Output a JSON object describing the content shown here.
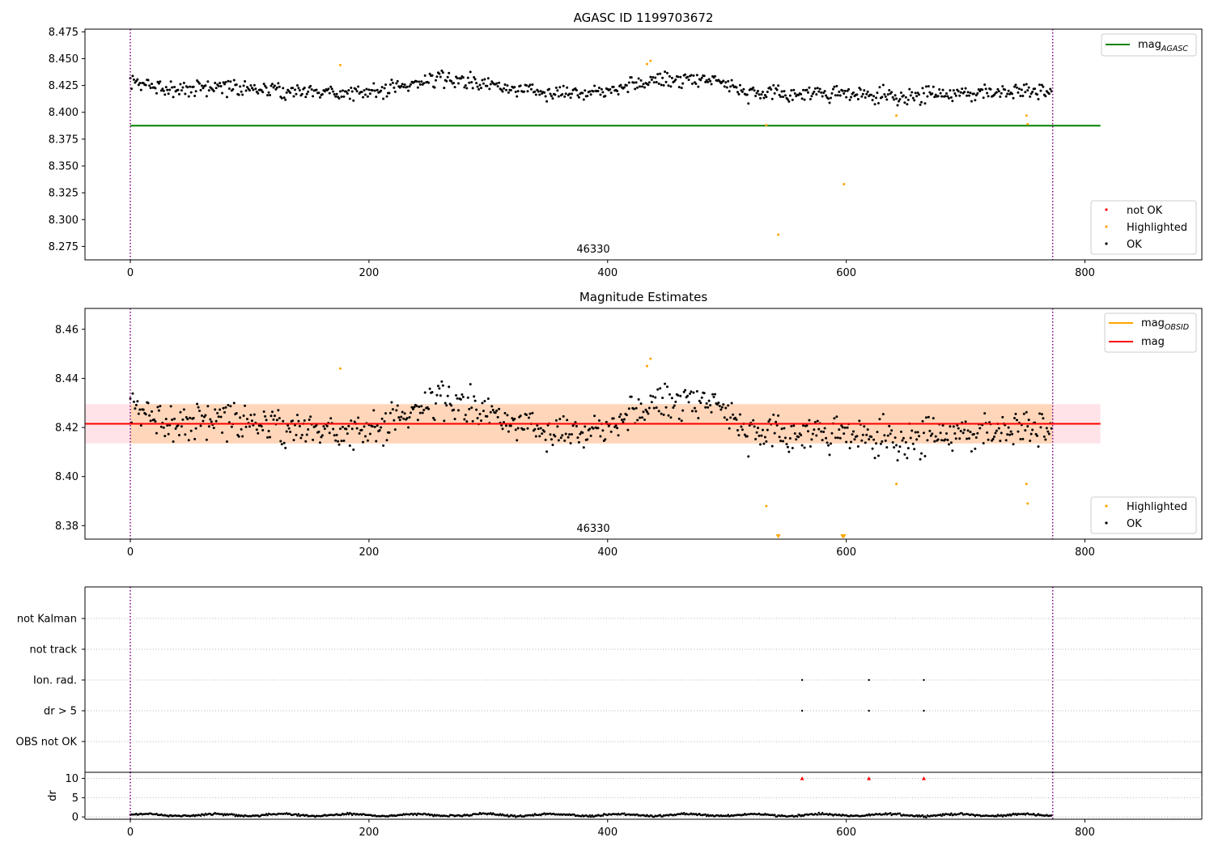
{
  "chart_data": [
    {
      "type": "scatter",
      "title": "AGASC ID 1199703672",
      "xlim": [
        -38,
        898
      ],
      "ylim": [
        8.2625,
        8.4775
      ],
      "x_ticks": [
        0,
        200,
        400,
        600,
        800
      ],
      "x_tick_labels": [
        "0",
        "200",
        "400",
        "600",
        "800"
      ],
      "y_ticks": [
        8.275,
        8.3,
        8.325,
        8.35,
        8.375,
        8.4,
        8.425,
        8.45,
        8.475
      ],
      "y_tick_labels": [
        "8.275",
        "8.300",
        "8.325",
        "8.350",
        "8.375",
        "8.400",
        "8.425",
        "8.450",
        "8.475"
      ],
      "obs_boundaries": [
        0,
        773
      ],
      "obs_label": "46330",
      "obs_label_x": 387,
      "lines": [
        {
          "name": "mag_AGASC",
          "color": "#008000",
          "x": [
            0,
            813
          ],
          "y": [
            8.3875,
            8.3875
          ]
        }
      ],
      "legend_lines": [
        {
          "base": "mag",
          "sub": "AGASC",
          "color": "#008000"
        }
      ],
      "legend_points": [
        {
          "label": "not OK",
          "color": "#ff0000"
        },
        {
          "label": "Highlighted",
          "color": "#ffa500"
        },
        {
          "label": "OK",
          "color": "#000000"
        }
      ],
      "highlighted": [
        {
          "x": 176,
          "y": 8.444
        },
        {
          "x": 433,
          "y": 8.445
        },
        {
          "x": 436,
          "y": 8.448
        },
        {
          "x": 533,
          "y": 8.388
        },
        {
          "x": 543,
          "y": 8.286
        },
        {
          "x": 598,
          "y": 8.333
        },
        {
          "x": 642,
          "y": 8.397
        },
        {
          "x": 751,
          "y": 8.397
        },
        {
          "x": 752,
          "y": 8.389
        }
      ],
      "ok_series_waypoints": [
        {
          "x": 0,
          "y": 8.427
        },
        {
          "x": 40,
          "y": 8.422
        },
        {
          "x": 80,
          "y": 8.424
        },
        {
          "x": 130,
          "y": 8.42
        },
        {
          "x": 200,
          "y": 8.418
        },
        {
          "x": 260,
          "y": 8.432
        },
        {
          "x": 320,
          "y": 8.422
        },
        {
          "x": 380,
          "y": 8.418
        },
        {
          "x": 440,
          "y": 8.43
        },
        {
          "x": 490,
          "y": 8.432
        },
        {
          "x": 520,
          "y": 8.416
        },
        {
          "x": 580,
          "y": 8.418
        },
        {
          "x": 640,
          "y": 8.414
        },
        {
          "x": 700,
          "y": 8.418
        },
        {
          "x": 740,
          "y": 8.42
        },
        {
          "x": 773,
          "y": 8.421
        }
      ],
      "ok_scatter": 0.008,
      "ok_count": 773
    },
    {
      "type": "scatter",
      "title": "Magnitude Estimates",
      "xlim": [
        -38,
        898
      ],
      "ylim": [
        8.3745,
        8.4685
      ],
      "x_ticks": [
        0,
        200,
        400,
        600,
        800
      ],
      "x_tick_labels": [
        "0",
        "200",
        "400",
        "600",
        "800"
      ],
      "y_ticks": [
        8.38,
        8.4,
        8.42,
        8.44,
        8.46
      ],
      "y_tick_labels": [
        "8.38",
        "8.40",
        "8.42",
        "8.44",
        "8.46"
      ],
      "obs_boundaries": [
        0,
        773
      ],
      "obs_label": "46330",
      "obs_label_x": 387,
      "bands": [
        {
          "x": [
            -38,
            813
          ],
          "y": [
            8.4135,
            8.4295
          ],
          "color": "#ffc0cb",
          "opacity": 0.45
        },
        {
          "x": [
            0,
            773
          ],
          "y": [
            8.4135,
            8.4295
          ],
          "color": "#ffa500",
          "opacity": 0.2
        }
      ],
      "lines": [
        {
          "name": "mag_OBSID",
          "color": "#ffa500",
          "x": [
            0,
            773
          ],
          "y": [
            8.4215,
            8.4215
          ]
        },
        {
          "name": "mag",
          "color": "#ff0000",
          "x": [
            -38,
            813
          ],
          "y": [
            8.4215,
            8.4215
          ]
        }
      ],
      "legend_lines": [
        {
          "base": "mag",
          "sub": "OBSID",
          "color": "#ffa500"
        },
        {
          "base": "mag",
          "sub": "",
          "color": "#ff0000"
        }
      ],
      "legend_points": [
        {
          "label": "Highlighted",
          "color": "#ffa500"
        },
        {
          "label": "OK",
          "color": "#000000"
        }
      ],
      "highlighted": [
        {
          "x": 176,
          "y": 8.444
        },
        {
          "x": 433,
          "y": 8.445
        },
        {
          "x": 436,
          "y": 8.448
        },
        {
          "x": 533,
          "y": 8.388
        },
        {
          "x": 642,
          "y": 8.397
        },
        {
          "x": 751,
          "y": 8.397
        },
        {
          "x": 752,
          "y": 8.389
        }
      ],
      "off_scale_markers": [
        {
          "x": 543
        },
        {
          "x": 597
        },
        {
          "x": 598
        }
      ],
      "ok_series_waypoints": [
        {
          "x": 0,
          "y": 8.427
        },
        {
          "x": 40,
          "y": 8.422
        },
        {
          "x": 80,
          "y": 8.424
        },
        {
          "x": 130,
          "y": 8.42
        },
        {
          "x": 200,
          "y": 8.418
        },
        {
          "x": 260,
          "y": 8.432
        },
        {
          "x": 320,
          "y": 8.422
        },
        {
          "x": 380,
          "y": 8.418
        },
        {
          "x": 440,
          "y": 8.43
        },
        {
          "x": 490,
          "y": 8.432
        },
        {
          "x": 520,
          "y": 8.416
        },
        {
          "x": 580,
          "y": 8.418
        },
        {
          "x": 640,
          "y": 8.414
        },
        {
          "x": 700,
          "y": 8.418
        },
        {
          "x": 740,
          "y": 8.42
        },
        {
          "x": 773,
          "y": 8.421
        }
      ],
      "ok_scatter": 0.008,
      "ok_count": 773
    },
    {
      "type": "scatter",
      "title": "",
      "xlim": [
        -38,
        898
      ],
      "categories": [
        "OBS not OK",
        "dr > 5",
        "Ion. rad.",
        "not track",
        "not Kalman"
      ],
      "obs_boundaries": [
        0,
        773
      ],
      "flags": [
        {
          "category": "Ion. rad.",
          "x": [
            563,
            619,
            665
          ]
        },
        {
          "category": "dr > 5",
          "x": [
            563,
            619,
            665
          ]
        }
      ]
    },
    {
      "type": "scatter",
      "title": "",
      "xlim": [
        -38,
        898
      ],
      "ylim": [
        -0.6,
        11.6
      ],
      "ylabel": "dr",
      "x_ticks": [
        0,
        200,
        400,
        600,
        800
      ],
      "x_tick_labels": [
        "0",
        "200",
        "400",
        "600",
        "800"
      ],
      "y_ticks": [
        0,
        5,
        10
      ],
      "y_tick_labels": [
        "0",
        "5",
        "10"
      ],
      "obs_boundaries": [
        0,
        773
      ],
      "dr_high": [
        {
          "x": 563,
          "y": 10
        },
        {
          "x": 619,
          "y": 10
        },
        {
          "x": 665,
          "y": 10
        }
      ],
      "dr_baseline": 0.5,
      "dr_count": 773
    }
  ]
}
